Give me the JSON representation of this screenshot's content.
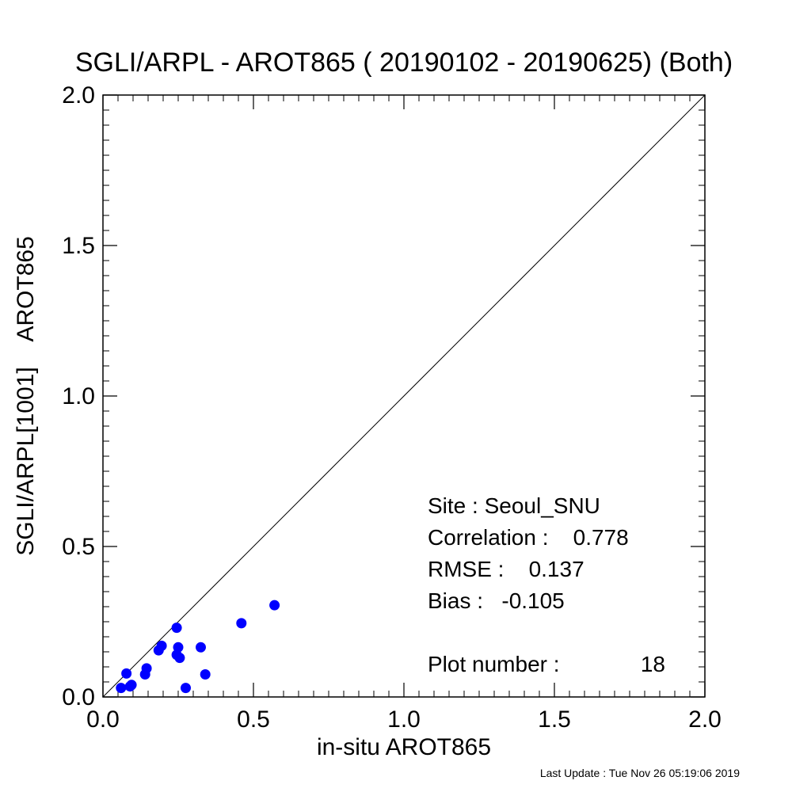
{
  "chart_data": {
    "type": "scatter",
    "title": "SGLI/ARPL - AROT865 ( 20190102 - 20190625) (Both)",
    "xlabel": "in-situ AROT865",
    "ylabel": "SGLI/ARPL[1001]    AROT865",
    "xlim": [
      0.0,
      2.0
    ],
    "ylim": [
      0.0,
      2.0
    ],
    "xticks": [
      "0.0",
      "0.5",
      "1.0",
      "1.5",
      "2.0"
    ],
    "yticks": [
      "0.0",
      "0.5",
      "1.0",
      "1.5",
      "2.0"
    ],
    "tick_values": [
      0.0,
      0.5,
      1.0,
      1.5,
      2.0
    ],
    "minor_tick_step": 0.05,
    "grid": false,
    "one_to_one_line": true,
    "marker_color": "#0000ff",
    "points": [
      {
        "x": 0.06,
        "y": 0.03
      },
      {
        "x": 0.078,
        "y": 0.078
      },
      {
        "x": 0.09,
        "y": 0.035
      },
      {
        "x": 0.095,
        "y": 0.04
      },
      {
        "x": 0.14,
        "y": 0.075
      },
      {
        "x": 0.145,
        "y": 0.095
      },
      {
        "x": 0.185,
        "y": 0.155
      },
      {
        "x": 0.195,
        "y": 0.17
      },
      {
        "x": 0.245,
        "y": 0.23
      },
      {
        "x": 0.245,
        "y": 0.14
      },
      {
        "x": 0.25,
        "y": 0.165
      },
      {
        "x": 0.255,
        "y": 0.13
      },
      {
        "x": 0.275,
        "y": 0.03
      },
      {
        "x": 0.325,
        "y": 0.165
      },
      {
        "x": 0.34,
        "y": 0.075
      },
      {
        "x": 0.46,
        "y": 0.245
      },
      {
        "x": 0.57,
        "y": 0.305
      }
    ],
    "stats": [
      "Site : Seoul_SNU",
      "Correlation :    0.778",
      "RMSE :    0.137",
      "Bias :   -0.105"
    ],
    "plot_number_label": "Plot number :",
    "plot_number_value": "18"
  },
  "footer": {
    "last_update": "Last Update : Tue Nov 26 05:19:06 2019"
  }
}
